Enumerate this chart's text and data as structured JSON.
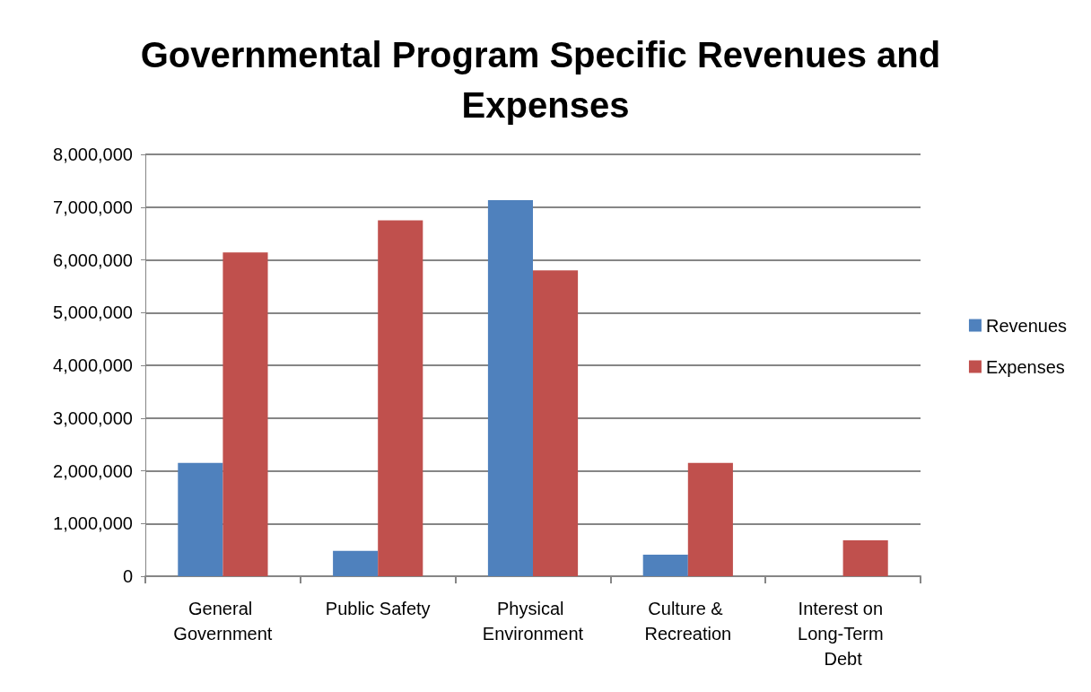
{
  "chart_data": {
    "type": "bar",
    "title": "Governmental Program Specific Revenues and Expenses",
    "categories": [
      "General Government",
      "Public Safety",
      "Physical Environment",
      "Culture & Recreation",
      "Interest on Long-Term Debt"
    ],
    "series": [
      {
        "name": "Revenues",
        "color": "#4f81bd",
        "values": [
          2150000,
          480000,
          7130000,
          410000,
          0
        ]
      },
      {
        "name": "Expenses",
        "color": "#c0504d",
        "values": [
          6140000,
          6750000,
          5800000,
          2150000,
          680000
        ]
      }
    ],
    "ylim": [
      0,
      8000000
    ],
    "yticks": [
      0,
      {
        "value": 1000000,
        "label": "1,000,000"
      },
      {
        "value": 2000000,
        "label": "2,000,000"
      },
      {
        "value": 3000000,
        "label": "3,000,000"
      },
      {
        "value": 4000000,
        "label": "4,000,000"
      },
      {
        "value": 5000000,
        "label": "5,000,000"
      },
      {
        "value": 6000000,
        "label": "6,000,000"
      },
      {
        "value": 7000000,
        "label": "7,000,000"
      },
      {
        "value": 8000000,
        "label": "8,000,000"
      }
    ],
    "grid": "y",
    "legend": "right"
  }
}
